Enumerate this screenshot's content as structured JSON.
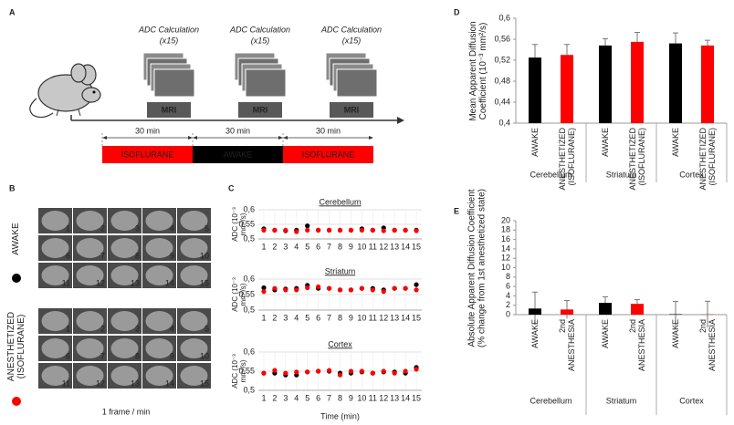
{
  "panel_a": {
    "label": "A",
    "steps": [
      {
        "title": "ADC Calculation",
        "count": "(x15)",
        "scanner": "MRI"
      },
      {
        "title": "ADC Calculation",
        "count": "(x15)",
        "scanner": "MRI"
      },
      {
        "title": "ADC Calculation",
        "count": "(x15)",
        "scanner": "MRI"
      }
    ],
    "durations": [
      "30 min",
      "30 min",
      "30 min"
    ],
    "states": [
      {
        "label": "ISOFLURANE",
        "color": "#ff0000"
      },
      {
        "label": "AWAKE",
        "color": "#000000"
      },
      {
        "label": "ISOFLURANE",
        "color": "#ff0000"
      }
    ]
  },
  "panel_b": {
    "label": "B",
    "groups": [
      {
        "label": "AWAKE",
        "color": "#000000",
        "frames": [
          1,
          2,
          3,
          4,
          5,
          6,
          7,
          8,
          9,
          10,
          11,
          12,
          13,
          14,
          15
        ]
      },
      {
        "label": "ANESTHETIZED (ISOFLURANE)",
        "color": "#ff0000",
        "frames": [
          1,
          2,
          3,
          4,
          5,
          6,
          7,
          8,
          9,
          10,
          11,
          12,
          13,
          14,
          15
        ]
      }
    ],
    "caption": "1 frame / min"
  },
  "panel_c": {
    "label": "C"
  },
  "panel_d": {
    "label": "D"
  },
  "panel_e": {
    "label": "E"
  },
  "chart_data": [
    {
      "type": "scatter",
      "title": "Cerebellum",
      "ylabel": "ADC (10⁻³ mm²/s)",
      "x": [
        1,
        2,
        3,
        4,
        5,
        6,
        7,
        8,
        9,
        10,
        11,
        12,
        13,
        14,
        15
      ],
      "xlim": [
        0.5,
        15.5
      ],
      "xticks": [
        1,
        2,
        3,
        4,
        5,
        6,
        7,
        8,
        9,
        10,
        11,
        12,
        13,
        14,
        15
      ],
      "ylim": [
        0.5,
        0.6
      ],
      "yticks": [
        {
          "value": 0.5,
          "label": "0,5"
        },
        {
          "value": 0.55,
          "label": "0,55"
        },
        {
          "value": 0.6,
          "label": "0,6"
        }
      ],
      "grid": true,
      "series": [
        {
          "color": "#000000",
          "values": [
            0.535,
            0.53,
            0.528,
            0.53,
            0.545,
            0.53,
            0.53,
            0.53,
            0.53,
            0.535,
            0.53,
            0.538,
            0.53,
            0.53,
            0.53
          ]
        },
        {
          "color": "#ff0000",
          "values": [
            0.53,
            0.53,
            0.53,
            0.525,
            0.53,
            0.53,
            0.53,
            0.53,
            0.53,
            0.53,
            0.53,
            0.528,
            0.53,
            0.53,
            0.528
          ]
        }
      ]
    },
    {
      "type": "scatter",
      "title": "Striatum",
      "ylabel": "ADC (10⁻³ mm²/s)",
      "x": [
        1,
        2,
        3,
        4,
        5,
        6,
        7,
        8,
        9,
        10,
        11,
        12,
        13,
        14,
        15
      ],
      "xlim": [
        0.5,
        15.5
      ],
      "xticks": [
        1,
        2,
        3,
        4,
        5,
        6,
        7,
        8,
        9,
        10,
        11,
        12,
        13,
        14,
        15
      ],
      "ylim": [
        0.5,
        0.6
      ],
      "yticks": [
        {
          "value": 0.5,
          "label": "0,5"
        },
        {
          "value": 0.55,
          "label": "0,55"
        },
        {
          "value": 0.6,
          "label": "0,6"
        }
      ],
      "grid": true,
      "series": [
        {
          "color": "#000000",
          "values": [
            0.572,
            0.565,
            0.568,
            0.57,
            0.58,
            0.57,
            0.57,
            0.565,
            0.565,
            0.57,
            0.57,
            0.565,
            0.57,
            0.57,
            0.582
          ]
        },
        {
          "color": "#ff0000",
          "values": [
            0.56,
            0.57,
            0.565,
            0.565,
            0.572,
            0.575,
            0.57,
            0.565,
            0.565,
            0.57,
            0.565,
            0.56,
            0.57,
            0.57,
            0.565
          ]
        }
      ]
    },
    {
      "type": "scatter",
      "title": "Cortex",
      "ylabel": "ADC (10⁻³ mm²/s)",
      "xlabel": "Time (min)",
      "x": [
        1,
        2,
        3,
        4,
        5,
        6,
        7,
        8,
        9,
        10,
        11,
        12,
        13,
        14,
        15
      ],
      "xlim": [
        0.5,
        15.5
      ],
      "xticks": [
        1,
        2,
        3,
        4,
        5,
        6,
        7,
        8,
        9,
        10,
        11,
        12,
        13,
        14,
        15
      ],
      "ylim": [
        0.5,
        0.6
      ],
      "yticks": [
        {
          "value": 0.5,
          "label": "0,5"
        },
        {
          "value": 0.55,
          "label": "0,55"
        },
        {
          "value": 0.6,
          "label": "0,6"
        }
      ],
      "grid": true,
      "series": [
        {
          "color": "#000000",
          "values": [
            0.545,
            0.545,
            0.54,
            0.54,
            0.548,
            0.55,
            0.55,
            0.545,
            0.545,
            0.548,
            0.545,
            0.548,
            0.548,
            0.545,
            0.56
          ]
        },
        {
          "color": "#ff0000",
          "values": [
            0.545,
            0.552,
            0.545,
            0.548,
            0.548,
            0.55,
            0.552,
            0.54,
            0.55,
            0.55,
            0.545,
            0.55,
            0.545,
            0.55,
            0.555
          ]
        }
      ]
    },
    {
      "type": "bar",
      "ylabel": "Mean Apparent Diffusion Coefficient (10⁻³ mm²/s)",
      "categories": [
        "Cerebellum",
        "Striatum",
        "Cortex"
      ],
      "ylim": [
        0.4,
        0.6
      ],
      "yticks": [
        {
          "value": 0.4,
          "label": "0,4"
        },
        {
          "value": 0.44,
          "label": "0,44"
        },
        {
          "value": 0.48,
          "label": "0,48"
        },
        {
          "value": 0.52,
          "label": "0,52"
        },
        {
          "value": 0.56,
          "label": "0,56"
        },
        {
          "value": 0.6,
          "label": "0,6"
        }
      ],
      "series": [
        {
          "name": "AWAKE",
          "color": "#000000",
          "values": [
            0.525,
            0.548,
            0.552
          ],
          "errors": [
            0.025,
            0.013,
            0.02
          ]
        },
        {
          "name": "ANESTHETIZED (ISOFLURANE)",
          "color": "#ff0000",
          "values": [
            0.53,
            0.555,
            0.548
          ],
          "errors": [
            0.02,
            0.018,
            0.01
          ]
        }
      ]
    },
    {
      "type": "bar",
      "ylabel": "Absolute Apparent Diffusion Coefficient (% change from 1st anesthetized state)",
      "categories": [
        "Cerebellum",
        "Striatum",
        "Cortex"
      ],
      "ylim": [
        0,
        20
      ],
      "yticks": [
        0,
        2,
        4,
        6,
        8,
        10,
        12,
        14,
        16,
        18,
        20
      ],
      "series": [
        {
          "name": "AWAKE",
          "color": "#000000",
          "values": [
            1.3,
            2.5,
            0.1
          ],
          "errors": [
            3.5,
            1.3,
            2.7
          ]
        },
        {
          "name": "2nd ANESTHESIA",
          "color": "#ff0000",
          "values": [
            1.1,
            2.3,
            0.05
          ],
          "errors": [
            1.9,
            0.9,
            2.8
          ]
        }
      ]
    }
  ]
}
